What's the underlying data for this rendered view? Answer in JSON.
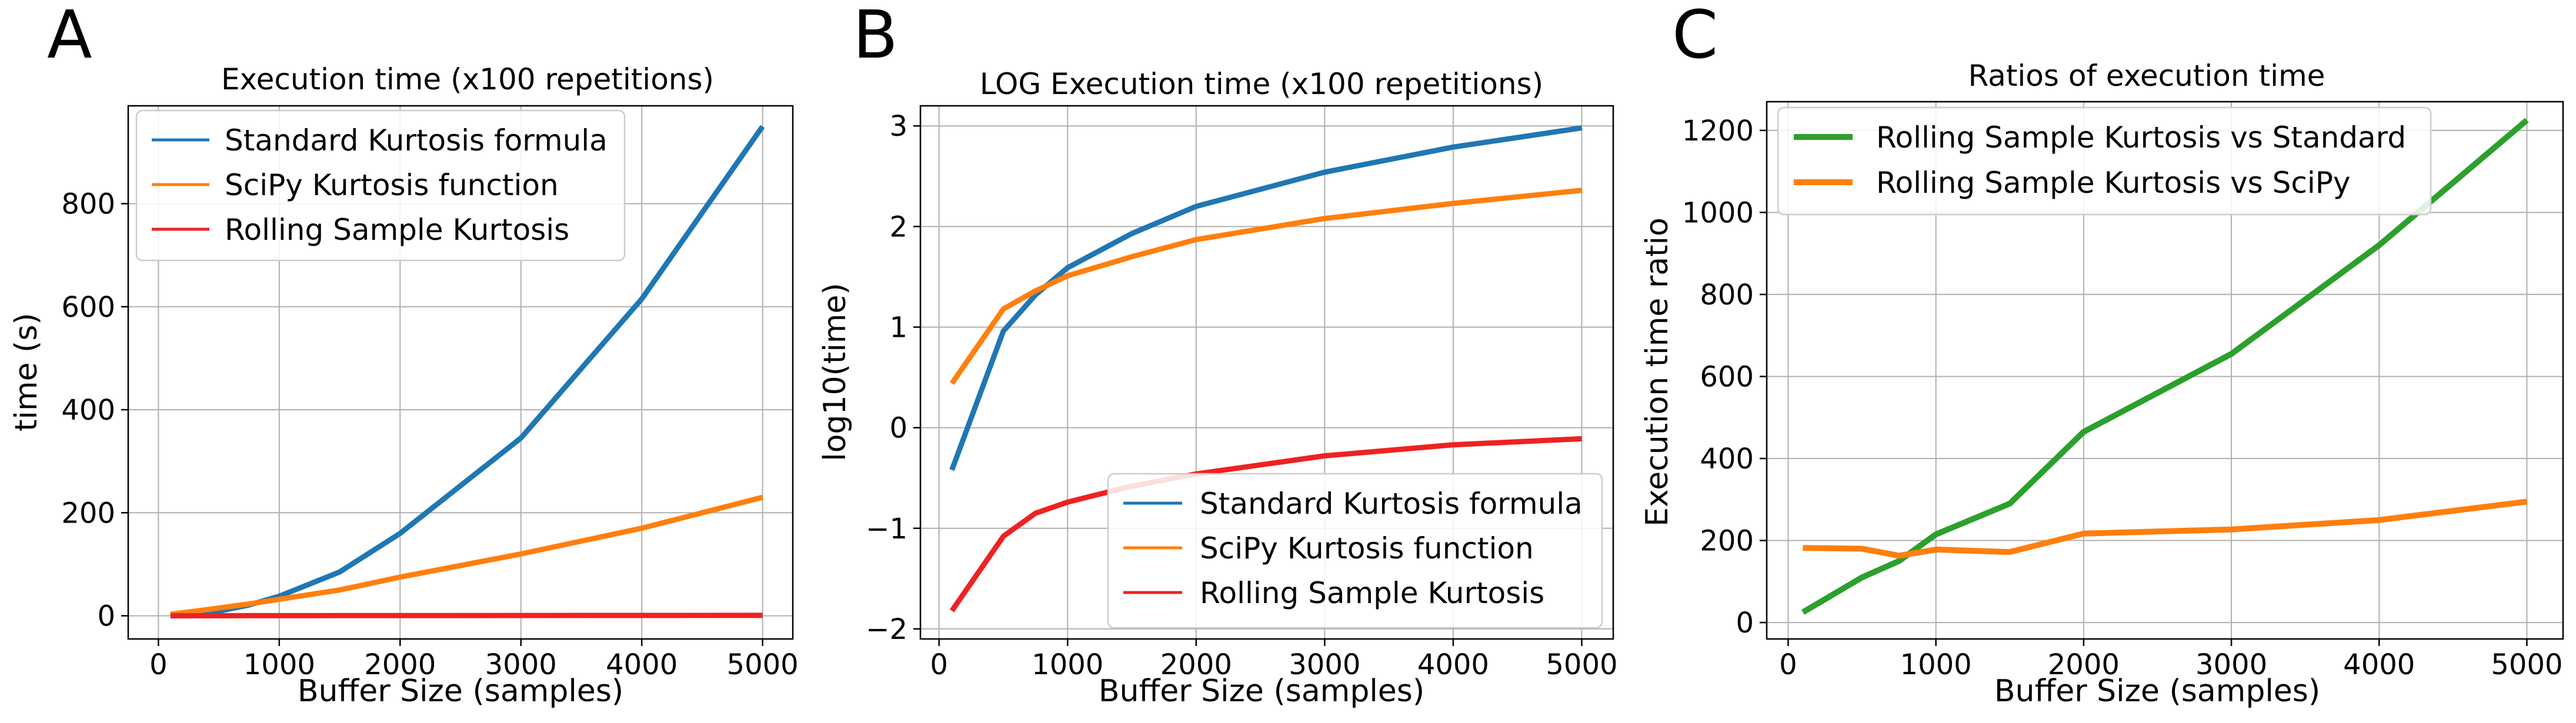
{
  "chart_data": [
    {
      "panel": "A",
      "type": "line",
      "title": "Execution time (x100 repetitions)",
      "xlabel": "Buffer Size (samples)",
      "ylabel": "time (s)",
      "xlim": [
        -250,
        5250
      ],
      "ylim": [
        -45,
        990
      ],
      "xticks": [
        0,
        1000,
        2000,
        3000,
        4000,
        5000
      ],
      "yticks": [
        0,
        200,
        400,
        600,
        800
      ],
      "grid": true,
      "legend_position": "top-left",
      "series": [
        {
          "name": "Standard Kurtosis formula",
          "color": "#1f77b4",
          "x": [
            100,
            500,
            750,
            1000,
            1500,
            2000,
            3000,
            4000,
            5000
          ],
          "y": [
            0.4,
            9,
            21,
            38,
            85,
            160,
            345,
            615,
            950
          ]
        },
        {
          "name": "SciPy Kurtosis function",
          "color": "#ff7f0e",
          "x": [
            100,
            500,
            750,
            1000,
            1500,
            2000,
            3000,
            4000,
            5000
          ],
          "y": [
            2.8,
            15,
            23,
            32,
            50,
            75,
            120,
            170,
            230
          ]
        },
        {
          "name": "Rolling Sample Kurtosis",
          "color": "#ee2222",
          "x": [
            100,
            500,
            750,
            1000,
            1500,
            2000,
            3000,
            4000,
            5000
          ],
          "y": [
            0.015,
            0.08,
            0.14,
            0.18,
            0.25,
            0.35,
            0.53,
            0.68,
            0.78
          ]
        }
      ]
    },
    {
      "panel": "B",
      "type": "line",
      "title": "LOG Execution time (x100 repetitions)",
      "xlabel": "Buffer Size (samples)",
      "ylabel": "log10(time)",
      "xlim": [
        -145,
        5245
      ],
      "ylim": [
        -2.1,
        3.2
      ],
      "xticks": [
        0,
        1000,
        2000,
        3000,
        4000,
        5000
      ],
      "yticks": [
        -2,
        -1,
        0,
        1,
        2,
        3
      ],
      "grid": true,
      "legend_position": "bottom-right",
      "series": [
        {
          "name": "Standard Kurtosis formula",
          "color": "#1f77b4",
          "x": [
            100,
            500,
            750,
            1000,
            1500,
            2000,
            3000,
            4000,
            5000
          ],
          "y": [
            -0.42,
            0.96,
            1.32,
            1.59,
            1.93,
            2.2,
            2.54,
            2.79,
            2.98
          ]
        },
        {
          "name": "SciPy Kurtosis function",
          "color": "#ff7f0e",
          "x": [
            100,
            500,
            750,
            1000,
            1500,
            2000,
            3000,
            4000,
            5000
          ],
          "y": [
            0.44,
            1.18,
            1.36,
            1.51,
            1.7,
            1.87,
            2.08,
            2.23,
            2.36
          ]
        },
        {
          "name": "Rolling Sample Kurtosis",
          "color": "#ee2222",
          "x": [
            100,
            500,
            750,
            1000,
            1500,
            2000,
            3000,
            4000,
            5000
          ],
          "y": [
            -1.82,
            -1.08,
            -0.85,
            -0.74,
            -0.58,
            -0.46,
            -0.28,
            -0.17,
            -0.11
          ]
        }
      ]
    },
    {
      "panel": "C",
      "type": "line",
      "title": "Ratios of execution time",
      "xlabel": "Buffer Size (samples)",
      "ylabel": "Execution time ratio",
      "xlim": [
        -145,
        5245
      ],
      "ylim": [
        -40,
        1270
      ],
      "xticks": [
        0,
        1000,
        2000,
        3000,
        4000,
        5000
      ],
      "yticks": [
        0,
        200,
        400,
        600,
        800,
        1000,
        1200
      ],
      "grid": true,
      "legend_position": "top-left",
      "series": [
        {
          "name": "Rolling Sample Kurtosis vs Standard",
          "color": "#2ca02c",
          "x": [
            100,
            500,
            750,
            1000,
            1500,
            2000,
            3000,
            4000,
            5000
          ],
          "y": [
            25,
            110,
            150,
            215,
            290,
            465,
            655,
            920,
            1225
          ]
        },
        {
          "name": "Rolling Sample Kurtosis vs SciPy",
          "color": "#ff7f0e",
          "x": [
            100,
            500,
            750,
            1000,
            1500,
            2000,
            3000,
            4000,
            5000
          ],
          "y": [
            182,
            180,
            163,
            178,
            172,
            217,
            227,
            250,
            295
          ]
        }
      ]
    }
  ]
}
